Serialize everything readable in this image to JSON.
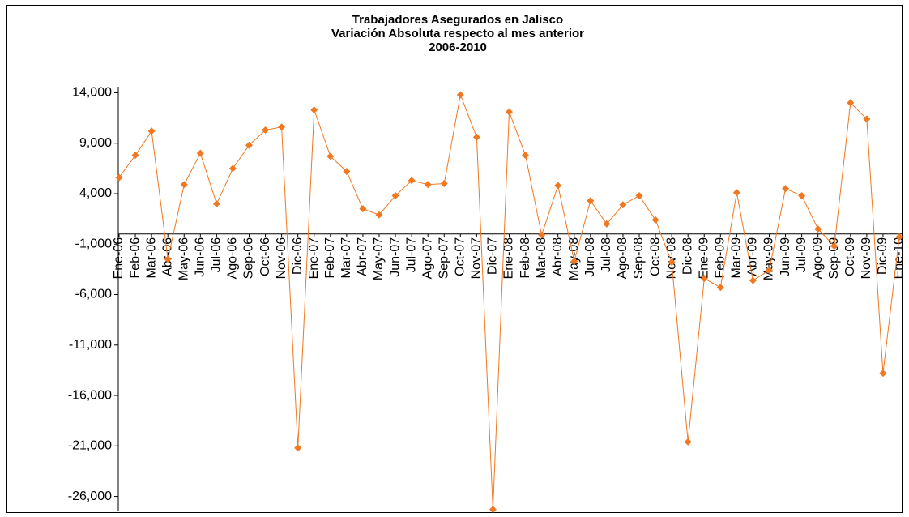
{
  "chart_data": {
    "type": "line",
    "title": [
      "Trabajadores Asegurados en Jalisco",
      "Variación Absoluta respecto al mes anterior",
      "2006-2010"
    ],
    "categories": [
      "Ene-06",
      "Feb-06",
      "Mar-06",
      "Abr-06",
      "May-06",
      "Jun-06",
      "Jul-06",
      "Ago-06",
      "Sep-06",
      "Oct-06",
      "Nov-06",
      "Dic-06",
      "Ene-07",
      "Feb-07",
      "Mar-07",
      "Abr-07",
      "May-07",
      "Jun-07",
      "Jul-07",
      "Ago-07",
      "Sep-07",
      "Oct-07",
      "Nov-07",
      "Dic-07",
      "Ene-08",
      "Feb-08",
      "Mar-08",
      "Abr-08",
      "May-08",
      "Jun-08",
      "Jul-08",
      "Ago-08",
      "Sep-08",
      "Oct-08",
      "Nov-08",
      "Dic-08",
      "Ene-09",
      "Feb-09",
      "Mar-09",
      "Abr-09",
      "May-09",
      "Jun-09",
      "Jul-09",
      "Ago-09",
      "Sep-09",
      "Oct-09",
      "Nov-09",
      "Dic-09",
      "Ene-10"
    ],
    "series": [
      {
        "color": "#f07820",
        "values": [
          5600,
          7800,
          10200,
          -2500,
          4900,
          8000,
          3000,
          6500,
          8800,
          10300,
          10600,
          -21200,
          12300,
          7700,
          6200,
          2500,
          1900,
          3800,
          5300,
          4900,
          5000,
          13800,
          9600,
          -27300,
          12100,
          7800,
          -100,
          4800,
          -2700,
          3300,
          1000,
          2900,
          3800,
          1400,
          -2800,
          -20600,
          -4400,
          -5300,
          4100,
          -4600,
          -3600,
          4500,
          3800,
          500,
          -1200,
          13000,
          11400,
          -13800,
          -300
        ]
      }
    ],
    "ylim": [
      -27400,
      14600
    ],
    "yticks": [
      {
        "value": 14000,
        "label": "14,000"
      },
      {
        "value": 9000,
        "label": "9,000"
      },
      {
        "value": 4000,
        "label": "4,000"
      },
      {
        "value": -1000,
        "label": "-1,000"
      },
      {
        "value": -6000,
        "label": "-6,000"
      },
      {
        "value": -11000,
        "label": "-11,000"
      },
      {
        "value": -16000,
        "label": "-16,000"
      },
      {
        "value": -21000,
        "label": "-21,000"
      },
      {
        "value": -26000,
        "label": "-26,000"
      }
    ]
  }
}
